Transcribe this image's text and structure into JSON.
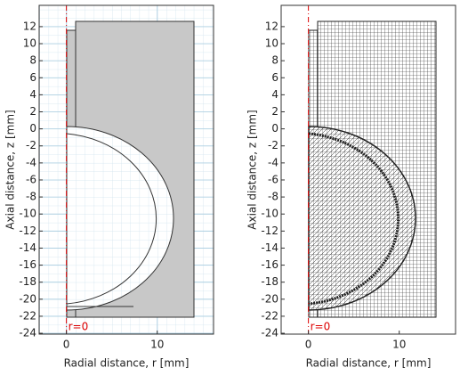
{
  "chart_data": [
    {
      "type": "geometry",
      "xlabel": "Radial distance, r [mm]",
      "ylabel": "Axial distance, z [mm]",
      "xlim": [
        -3,
        16.2
      ],
      "ylim": [
        -24.1,
        14.5
      ],
      "xticks": [
        0,
        10
      ],
      "yticks": [
        -24,
        -22,
        -20,
        -18,
        -16,
        -14,
        -12,
        -10,
        -8,
        -6,
        -4,
        -2,
        0,
        2,
        4,
        6,
        8,
        10,
        12
      ],
      "annotation": "r=0",
      "grid": true
    },
    {
      "type": "mesh",
      "xlabel": "Radial distance, r [mm]",
      "ylabel": "Axial distance, z [mm]",
      "xlim": [
        -3,
        16.2
      ],
      "ylim": [
        -24.1,
        14.5
      ],
      "xticks": [
        0,
        10
      ],
      "yticks": [
        -24,
        -22,
        -20,
        -18,
        -16,
        -14,
        -12,
        -10,
        -8,
        -6,
        -4,
        -2,
        0,
        2,
        4,
        6,
        8,
        10,
        12
      ],
      "annotation": "r=0",
      "grid": false
    }
  ]
}
